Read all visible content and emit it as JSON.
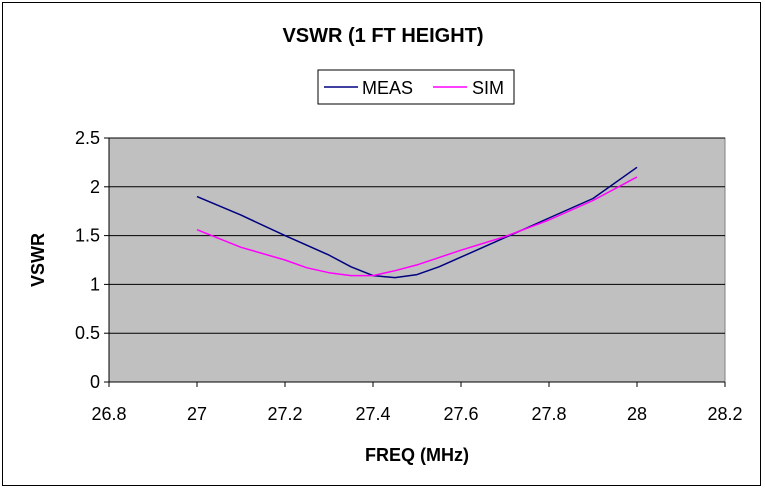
{
  "chart_data": {
    "type": "line",
    "title": "VSWR (1 FT HEIGHT)",
    "xlabel": "FREQ (MHz)",
    "ylabel": "VSWR",
    "xlim": [
      26.8,
      28.2
    ],
    "ylim": [
      0,
      2.5
    ],
    "xticks": [
      "26.8",
      "27",
      "27.2",
      "27.4",
      "27.6",
      "27.8",
      "28",
      "28.2"
    ],
    "yticks": [
      "0",
      "0.5",
      "1",
      "1.5",
      "2",
      "2.5"
    ],
    "grid": "horizontal",
    "legend": "top",
    "plot_background": "#c0c0c0",
    "series": [
      {
        "name": "MEAS",
        "color": "#000080",
        "x": [
          27.0,
          27.1,
          27.2,
          27.3,
          27.35,
          27.4,
          27.45,
          27.5,
          27.55,
          27.6,
          27.7,
          27.8,
          27.9,
          28.0
        ],
        "y": [
          1.9,
          1.71,
          1.5,
          1.3,
          1.18,
          1.09,
          1.07,
          1.1,
          1.18,
          1.28,
          1.48,
          1.68,
          1.88,
          2.2
        ]
      },
      {
        "name": "SIM",
        "color": "#ff00ff",
        "x": [
          27.0,
          27.1,
          27.2,
          27.25,
          27.3,
          27.35,
          27.4,
          27.45,
          27.5,
          27.6,
          27.7,
          27.8,
          27.9,
          28.0
        ],
        "y": [
          1.56,
          1.38,
          1.25,
          1.17,
          1.12,
          1.09,
          1.09,
          1.14,
          1.2,
          1.35,
          1.49,
          1.66,
          1.86,
          2.1
        ]
      }
    ]
  }
}
